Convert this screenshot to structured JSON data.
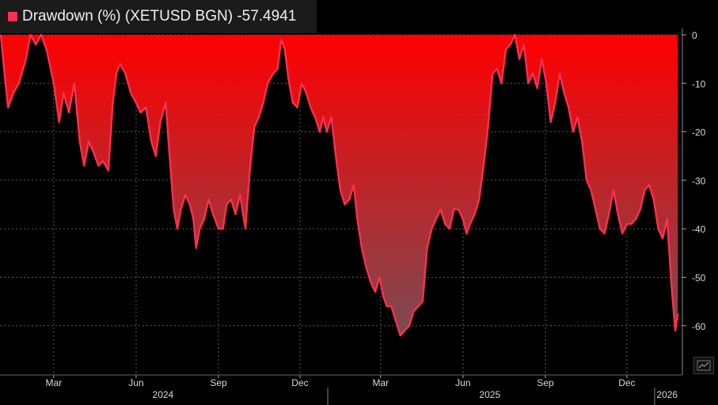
{
  "legend": {
    "label": "Drawdown (%) (XETUSD BGN) -57.4941"
  },
  "colors": {
    "series": "#ff2f4f",
    "fill_top": "#ff0000",
    "fill_bottom": "#7a4a52",
    "grid": "#5a5a5a",
    "text": "#d8d8d8"
  },
  "icons": {
    "chart_tool": "chart-icon"
  },
  "chart_data": {
    "type": "area",
    "series": [
      {
        "name": "Drawdown (%) (XETUSD BGN)",
        "last_value": -57.4941,
        "points": [
          [
            "2024-01-02",
            0
          ],
          [
            "2024-01-06",
            -8
          ],
          [
            "2024-01-10",
            -15
          ],
          [
            "2024-01-16",
            -12
          ],
          [
            "2024-01-22",
            -10
          ],
          [
            "2024-01-30",
            -5
          ],
          [
            "2024-02-04",
            0
          ],
          [
            "2024-02-10",
            -2
          ],
          [
            "2024-02-16",
            0
          ],
          [
            "2024-02-22",
            -3
          ],
          [
            "2024-03-01",
            -10
          ],
          [
            "2024-03-07",
            -18
          ],
          [
            "2024-03-12",
            -12
          ],
          [
            "2024-03-18",
            -16
          ],
          [
            "2024-03-24",
            -10
          ],
          [
            "2024-03-30",
            -22
          ],
          [
            "2024-04-04",
            -27
          ],
          [
            "2024-04-09",
            -22
          ],
          [
            "2024-04-14",
            -24
          ],
          [
            "2024-04-20",
            -27
          ],
          [
            "2024-04-25",
            -26
          ],
          [
            "2024-05-01",
            -28
          ],
          [
            "2024-05-06",
            -14
          ],
          [
            "2024-05-10",
            -8
          ],
          [
            "2024-05-14",
            -6
          ],
          [
            "2024-05-20",
            -8
          ],
          [
            "2024-05-26",
            -12
          ],
          [
            "2024-06-01",
            -14
          ],
          [
            "2024-06-06",
            -16
          ],
          [
            "2024-06-12",
            -15
          ],
          [
            "2024-06-18",
            -22
          ],
          [
            "2024-06-23",
            -25
          ],
          [
            "2024-06-28",
            -18
          ],
          [
            "2024-07-04",
            -14
          ],
          [
            "2024-07-08",
            -24
          ],
          [
            "2024-07-13",
            -36
          ],
          [
            "2024-07-17",
            -40
          ],
          [
            "2024-07-21",
            -36
          ],
          [
            "2024-07-26",
            -33
          ],
          [
            "2024-07-31",
            -35
          ],
          [
            "2024-08-04",
            -38
          ],
          [
            "2024-08-07",
            -44
          ],
          [
            "2024-08-11",
            -40
          ],
          [
            "2024-08-16",
            -38
          ],
          [
            "2024-08-21",
            -34
          ],
          [
            "2024-08-26",
            -37
          ],
          [
            "2024-09-01",
            -40
          ],
          [
            "2024-09-06",
            -40
          ],
          [
            "2024-09-10",
            -35
          ],
          [
            "2024-09-15",
            -34
          ],
          [
            "2024-09-20",
            -37
          ],
          [
            "2024-09-25",
            -33
          ],
          [
            "2024-10-01",
            -40
          ],
          [
            "2024-10-06",
            -28
          ],
          [
            "2024-10-11",
            -19
          ],
          [
            "2024-10-16",
            -17
          ],
          [
            "2024-10-21",
            -14
          ],
          [
            "2024-10-26",
            -10
          ],
          [
            "2024-11-01",
            -8
          ],
          [
            "2024-11-06",
            -7
          ],
          [
            "2024-11-10",
            -1
          ],
          [
            "2024-11-14",
            -3
          ],
          [
            "2024-11-18",
            -9
          ],
          [
            "2024-11-23",
            -14
          ],
          [
            "2024-11-28",
            -15
          ],
          [
            "2024-12-03",
            -10
          ],
          [
            "2024-12-08",
            -12
          ],
          [
            "2024-12-13",
            -15
          ],
          [
            "2024-12-18",
            -17
          ],
          [
            "2024-12-23",
            -20
          ],
          [
            "2024-12-27",
            -17
          ],
          [
            "2024-12-31",
            -20
          ],
          [
            "2025-01-05",
            -17
          ],
          [
            "2025-01-10",
            -25
          ],
          [
            "2025-01-15",
            -32
          ],
          [
            "2025-01-20",
            -35
          ],
          [
            "2025-01-25",
            -34
          ],
          [
            "2025-01-30",
            -31
          ],
          [
            "2025-02-03",
            -38
          ],
          [
            "2025-02-08",
            -44
          ],
          [
            "2025-02-13",
            -48
          ],
          [
            "2025-02-18",
            -51
          ],
          [
            "2025-02-23",
            -53
          ],
          [
            "2025-02-28",
            -50
          ],
          [
            "2025-03-04",
            -54
          ],
          [
            "2025-03-08",
            -56
          ],
          [
            "2025-03-13",
            -56
          ],
          [
            "2025-03-18",
            -59
          ],
          [
            "2025-03-23",
            -62
          ],
          [
            "2025-03-28",
            -61
          ],
          [
            "2025-04-02",
            -60
          ],
          [
            "2025-04-07",
            -57
          ],
          [
            "2025-04-12",
            -56
          ],
          [
            "2025-04-17",
            -55
          ],
          [
            "2025-04-22",
            -44
          ],
          [
            "2025-04-27",
            -40
          ],
          [
            "2025-05-02",
            -38
          ],
          [
            "2025-05-07",
            -36
          ],
          [
            "2025-05-12",
            -39
          ],
          [
            "2025-05-17",
            -40
          ],
          [
            "2025-05-22",
            -36
          ],
          [
            "2025-05-27",
            -36
          ],
          [
            "2025-06-01",
            -38
          ],
          [
            "2025-06-05",
            -41
          ],
          [
            "2025-06-09",
            -39
          ],
          [
            "2025-06-14",
            -37
          ],
          [
            "2025-06-19",
            -34
          ],
          [
            "2025-06-24",
            -27
          ],
          [
            "2025-06-29",
            -19
          ],
          [
            "2025-07-04",
            -8
          ],
          [
            "2025-07-09",
            -7
          ],
          [
            "2025-07-14",
            -10
          ],
          [
            "2025-07-19",
            -3
          ],
          [
            "2025-07-24",
            -2
          ],
          [
            "2025-07-29",
            0
          ],
          [
            "2025-08-03",
            -5
          ],
          [
            "2025-08-08",
            -2
          ],
          [
            "2025-08-13",
            -10
          ],
          [
            "2025-08-18",
            -8
          ],
          [
            "2025-08-23",
            -11
          ],
          [
            "2025-08-28",
            -5
          ],
          [
            "2025-09-02",
            -10
          ],
          [
            "2025-09-07",
            -18
          ],
          [
            "2025-09-12",
            -14
          ],
          [
            "2025-09-17",
            -8
          ],
          [
            "2025-09-22",
            -12
          ],
          [
            "2025-09-27",
            -15
          ],
          [
            "2025-10-02",
            -20
          ],
          [
            "2025-10-07",
            -17
          ],
          [
            "2025-10-12",
            -22
          ],
          [
            "2025-10-17",
            -30
          ],
          [
            "2025-10-22",
            -32
          ],
          [
            "2025-10-27",
            -36
          ],
          [
            "2025-11-01",
            -40
          ],
          [
            "2025-11-06",
            -41
          ],
          [
            "2025-11-11",
            -37
          ],
          [
            "2025-11-16",
            -32
          ],
          [
            "2025-11-21",
            -37
          ],
          [
            "2025-11-26",
            -41
          ],
          [
            "2025-12-01",
            -39
          ],
          [
            "2025-12-06",
            -39
          ],
          [
            "2025-12-11",
            -38
          ],
          [
            "2025-12-16",
            -36
          ],
          [
            "2025-12-21",
            -32
          ],
          [
            "2025-12-26",
            -31
          ],
          [
            "2025-12-31",
            -34
          ],
          [
            "2026-01-05",
            -40
          ],
          [
            "2026-01-10",
            -42
          ],
          [
            "2026-01-15",
            -38
          ],
          [
            "2026-01-20",
            -52
          ],
          [
            "2026-01-24",
            -61
          ],
          [
            "2026-01-27",
            -57.4941
          ]
        ]
      }
    ],
    "ylim": [
      -70,
      0
    ],
    "y_ticks": [
      0,
      -10,
      -20,
      -30,
      -40,
      -50,
      -60
    ],
    "x_range": [
      "2024-01-01",
      "2026-02-01"
    ],
    "x_month_ticks": [
      {
        "date": "2024-03-01",
        "label": "Mar"
      },
      {
        "date": "2024-06-01",
        "label": "Jun"
      },
      {
        "date": "2024-09-01",
        "label": "Sep"
      },
      {
        "date": "2024-12-01",
        "label": "Dec"
      },
      {
        "date": "2025-03-01",
        "label": "Mar"
      },
      {
        "date": "2025-06-01",
        "label": "Jun"
      },
      {
        "date": "2025-09-01",
        "label": "Sep"
      },
      {
        "date": "2025-12-01",
        "label": "Dec"
      }
    ],
    "x_year_ticks": [
      {
        "date": "2024-07-01",
        "label": "2024"
      },
      {
        "date": "2025-07-01",
        "label": "2025"
      },
      {
        "date": "2026-01-15",
        "label": "2026"
      }
    ],
    "year_boundaries": [
      "2025-01-01",
      "2026-01-01"
    ],
    "grid": true,
    "legend_position": "top-left",
    "y_axis_side": "right"
  }
}
